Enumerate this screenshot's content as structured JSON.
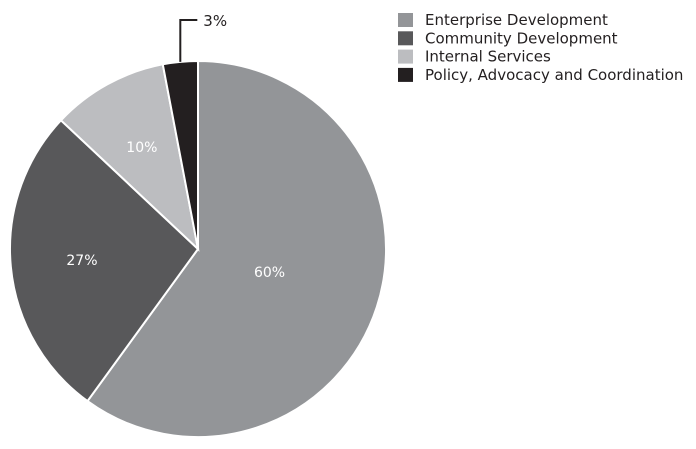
{
  "chart_data": {
    "type": "pie",
    "title": "",
    "legend_position": "top-right",
    "slices": [
      {
        "label": "Enterprise Development",
        "value": 60,
        "display": "60%",
        "color": "#939598"
      },
      {
        "label": "Community Development",
        "value": 27,
        "display": "27%",
        "color": "#58585a"
      },
      {
        "label": "Internal Services",
        "value": 10,
        "display": "10%",
        "color": "#bcbdc0"
      },
      {
        "label": "Policy, Advocacy and Coordination",
        "value": 3,
        "display": "3%",
        "color": "#231f20"
      }
    ]
  }
}
